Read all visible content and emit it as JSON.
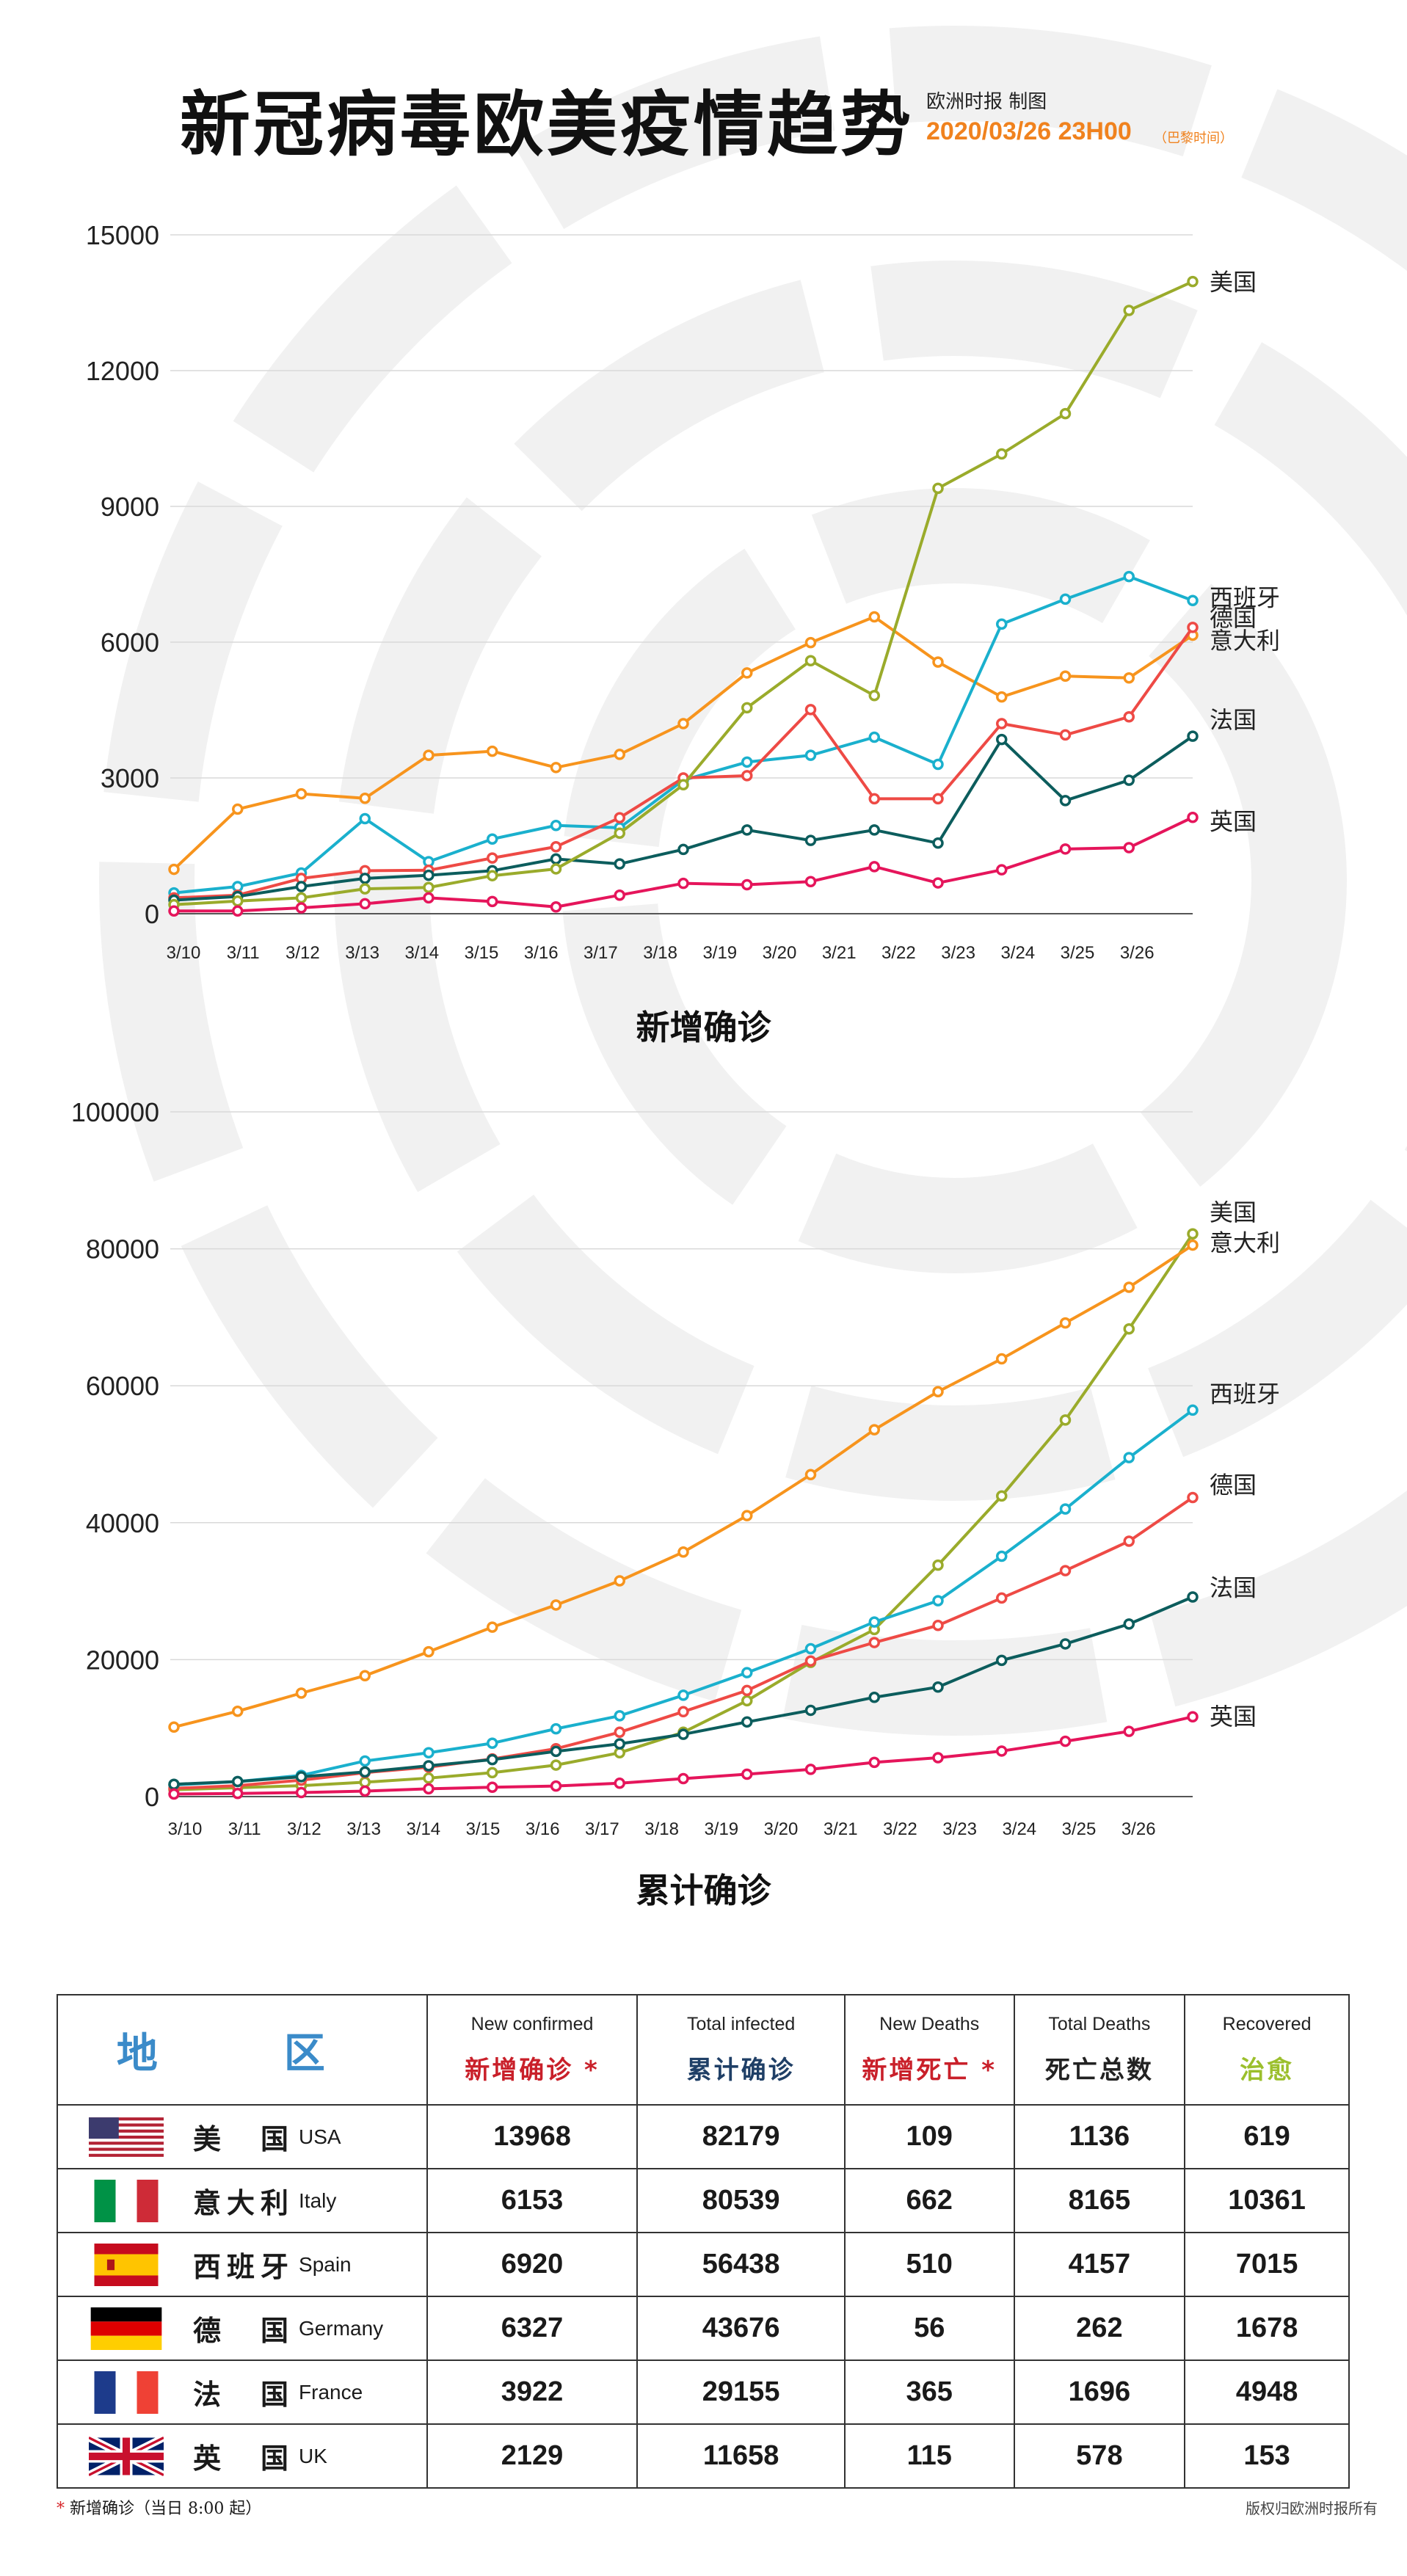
{
  "header": {
    "title": "新冠病毒欧美疫情趋势",
    "publisher": "欧洲时报 制图",
    "datetime": "2020/03/26 23H00",
    "timezone": "（巴黎时间）"
  },
  "colors": {
    "usa": "#9aab2b",
    "italy": "#f7941d",
    "spain": "#1ab0cd",
    "germany": "#ee4a45",
    "france": "#0c5d5d",
    "uk": "#e5155b",
    "region_header": "#3b8bc9",
    "red_header": "#c9202a",
    "navy_header": "#1f3f66",
    "green_header": "#9bbf2c"
  },
  "chart_data": [
    {
      "type": "line",
      "title": "新增确诊",
      "x": [
        "3/10",
        "3/11",
        "3/12",
        "3/13",
        "3/14",
        "3/15",
        "3/16",
        "3/17",
        "3/18",
        "3/19",
        "3/20",
        "3/21",
        "3/22",
        "3/23",
        "3/24",
        "3/25",
        "3/26"
      ],
      "yticks": [
        "0",
        "3000",
        "6000",
        "9000",
        "12000",
        "15000"
      ],
      "ylim": [
        0,
        15000
      ],
      "series": [
        {
          "name": "意大利",
          "key": "italy",
          "values": [
            980,
            2310,
            2650,
            2550,
            3500,
            3590,
            3230,
            3520,
            4200,
            5320,
            5990,
            6560,
            5560,
            4790,
            5250,
            5210,
            6153
          ]
        },
        {
          "name": "西班牙",
          "key": "spain",
          "values": [
            460,
            600,
            900,
            2100,
            1150,
            1650,
            1950,
            1900,
            2950,
            3350,
            3500,
            3900,
            3300,
            6400,
            6950,
            7450,
            6920
          ]
        },
        {
          "name": "德国",
          "key": "germany",
          "values": [
            350,
            410,
            780,
            950,
            960,
            1230,
            1480,
            2120,
            3000,
            3050,
            4510,
            2540,
            2540,
            4200,
            3950,
            4350,
            6327
          ]
        },
        {
          "name": "法国",
          "key": "france",
          "values": [
            300,
            380,
            600,
            780,
            850,
            950,
            1210,
            1100,
            1420,
            1850,
            1620,
            1850,
            1560,
            3850,
            2500,
            2950,
            3922
          ]
        },
        {
          "name": "美国",
          "key": "usa",
          "values": [
            200,
            280,
            350,
            550,
            580,
            840,
            990,
            1780,
            2850,
            4550,
            5590,
            4820,
            9400,
            10160,
            11050,
            13330,
            13968
          ]
        },
        {
          "name": "英国",
          "key": "uk",
          "values": [
            60,
            60,
            130,
            220,
            350,
            270,
            150,
            410,
            670,
            640,
            710,
            1040,
            680,
            970,
            1430,
            1460,
            2129
          ]
        }
      ]
    },
    {
      "type": "line",
      "title": "累计确诊",
      "x": [
        "3/10",
        "3/11",
        "3/12",
        "3/13",
        "3/14",
        "3/15",
        "3/16",
        "3/17",
        "3/18",
        "3/19",
        "3/20",
        "3/21",
        "3/22",
        "3/23",
        "3/24",
        "3/25",
        "3/26"
      ],
      "yticks": [
        "0",
        "20000",
        "40000",
        "60000",
        "80000",
        "100000"
      ],
      "ylim": [
        0,
        100000
      ],
      "series": [
        {
          "name": "美国",
          "key": "usa",
          "values": [
            1000,
            1300,
            1600,
            2100,
            2700,
            3500,
            4600,
            6400,
            9400,
            14000,
            19600,
            24400,
            33800,
            43900,
            55000,
            68300,
            82179
          ]
        },
        {
          "name": "意大利",
          "key": "italy",
          "values": [
            10149,
            12462,
            15113,
            17660,
            21157,
            24747,
            27980,
            31506,
            35713,
            41035,
            47021,
            53578,
            59138,
            63927,
            69176,
            74386,
            80539
          ]
        },
        {
          "name": "西班牙",
          "key": "spain",
          "values": [
            1700,
            2200,
            3100,
            5200,
            6400,
            7800,
            9900,
            11800,
            14800,
            18100,
            21600,
            25500,
            28600,
            35100,
            42000,
            49500,
            56438
          ]
        },
        {
          "name": "德国",
          "key": "germany",
          "values": [
            1200,
            1600,
            2400,
            3500,
            4300,
            5500,
            7000,
            9400,
            12400,
            15500,
            19800,
            22500,
            25000,
            29000,
            33000,
            37300,
            43676
          ]
        },
        {
          "name": "法国",
          "key": "france",
          "values": [
            1800,
            2200,
            2900,
            3600,
            4500,
            5400,
            6600,
            7700,
            9100,
            10900,
            12600,
            14500,
            16000,
            19900,
            22300,
            25200,
            29155
          ]
        },
        {
          "name": "英国",
          "key": "uk",
          "values": [
            370,
            460,
            590,
            800,
            1140,
            1370,
            1540,
            1950,
            2630,
            3270,
            3980,
            5000,
            5680,
            6650,
            8080,
            9530,
            11658
          ]
        }
      ]
    }
  ],
  "end_labels_new": [
    {
      "text": "美国",
      "value": 13968
    },
    {
      "text": "西班牙",
      "value": 7000
    },
    {
      "text": "德国",
      "value": 6550
    },
    {
      "text": "意大利",
      "value": 6050
    },
    {
      "text": "法国",
      "value": 4300
    },
    {
      "text": "英国",
      "value": 2050
    }
  ],
  "end_labels_total": [
    {
      "text": "美国",
      "value": 85400
    },
    {
      "text": "意大利",
      "value": 81000
    },
    {
      "text": "西班牙",
      "value": 58900
    },
    {
      "text": "德国",
      "value": 45600
    },
    {
      "text": "法国",
      "value": 30600
    },
    {
      "text": "英国",
      "value": 11800
    }
  ],
  "table": {
    "region_header": "地　区",
    "columns": [
      {
        "en": "New confirmed",
        "cn": "新增确诊 *",
        "color": "#c9202a"
      },
      {
        "en": "Total infected",
        "cn": "累计确诊",
        "color": "#1f3f66"
      },
      {
        "en": "New Deaths",
        "cn": "新增死亡 *",
        "color": "#c9202a"
      },
      {
        "en": "Total Deaths",
        "cn": "死亡总数",
        "color": "#222222"
      },
      {
        "en": "Recovered",
        "cn": "治愈",
        "color": "#9bbf2c"
      }
    ],
    "rows": [
      {
        "cn": "美　国",
        "en": "USA",
        "flag": "usa-flag-icon",
        "values": [
          "13968",
          "82179",
          "109",
          "1136",
          "619"
        ]
      },
      {
        "cn": "意大利",
        "en": "Italy",
        "flag": "italy-flag-icon",
        "values": [
          "6153",
          "80539",
          "662",
          "8165",
          "10361"
        ]
      },
      {
        "cn": "西班牙",
        "en": "Spain",
        "flag": "spain-flag-icon",
        "values": [
          "6920",
          "56438",
          "510",
          "4157",
          "7015"
        ]
      },
      {
        "cn": "德　国",
        "en": "Germany",
        "flag": "germany-flag-icon",
        "values": [
          "6327",
          "43676",
          "56",
          "262",
          "1678"
        ]
      },
      {
        "cn": "法　国",
        "en": "France",
        "flag": "france-flag-icon",
        "values": [
          "3922",
          "29155",
          "365",
          "1696",
          "4948"
        ]
      },
      {
        "cn": "英　国",
        "en": "UK",
        "flag": "uk-flag-icon",
        "values": [
          "2129",
          "11658",
          "115",
          "578",
          "153"
        ]
      }
    ]
  },
  "footer": {
    "star": "*",
    "note": " 新增确诊（当日 8:00 起）",
    "copyright": "版权归欧洲时报所有"
  }
}
